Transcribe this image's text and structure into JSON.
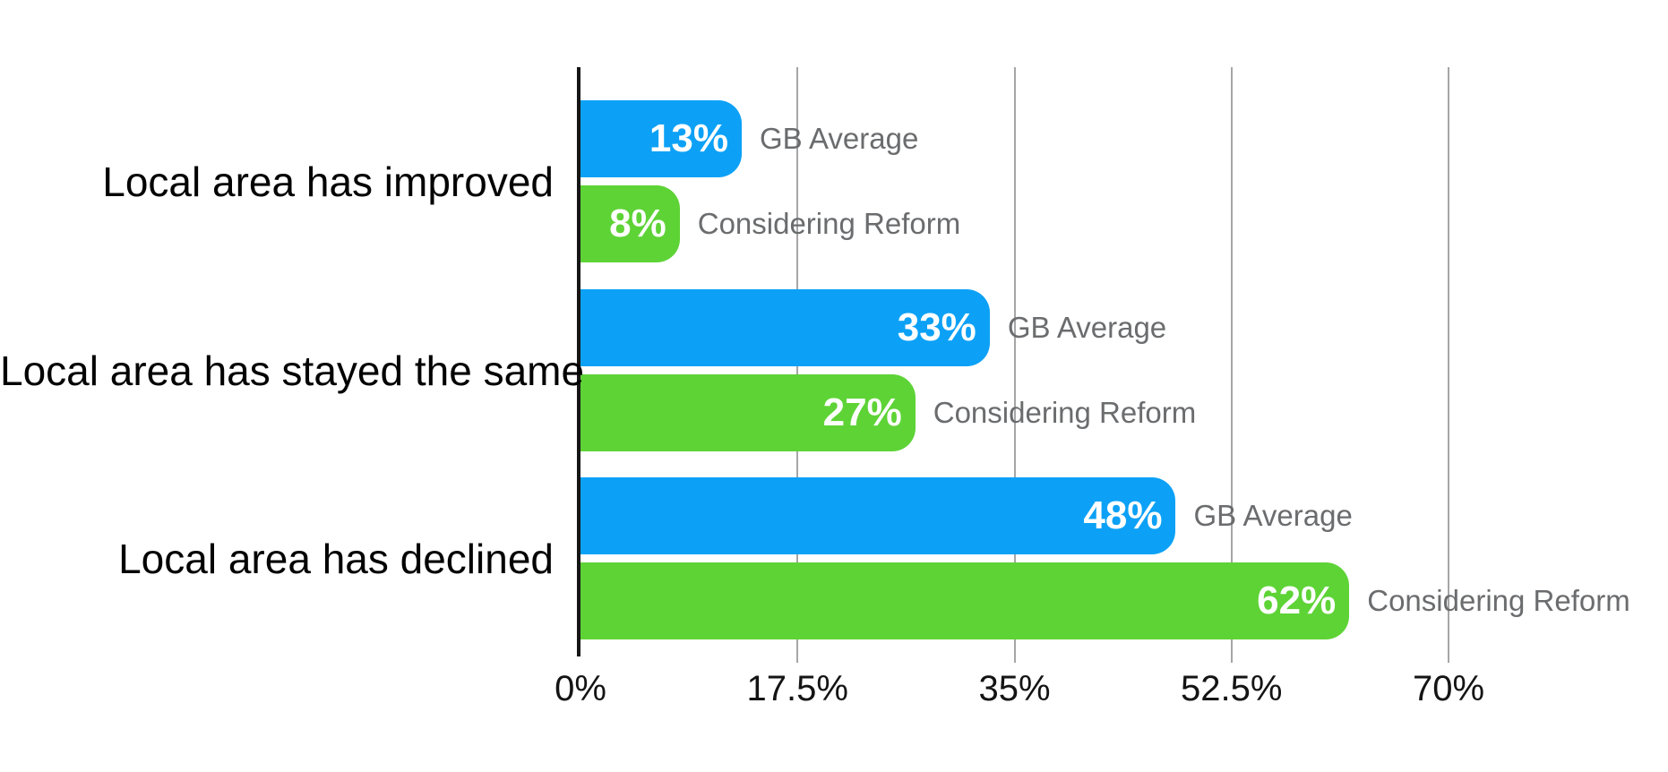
{
  "chart_data": {
    "type": "bar",
    "orientation": "horizontal",
    "title": "",
    "xlabel": "",
    "ylabel": "",
    "categories": [
      "Local area has improved",
      "Local area has stayed the same",
      "Local area has declined"
    ],
    "series": [
      {
        "name": "GB Average",
        "color": "#0CA1F6",
        "values": [
          13,
          33,
          48
        ],
        "labels": [
          "13%",
          "33%",
          "48%"
        ]
      },
      {
        "name": "Considering Reform",
        "color": "#5ED336",
        "values": [
          8,
          27,
          62
        ],
        "labels": [
          "8%",
          "27%",
          "62%"
        ]
      }
    ],
    "x_ticks": [
      "0%",
      "17.5%",
      "35%",
      "52.5%",
      "70%"
    ],
    "x_tick_values": [
      0,
      17.5,
      35,
      52.5,
      70
    ],
    "xlim": [
      0,
      70
    ],
    "grid": true,
    "value_labels_position": "inside-bar-right",
    "series_labels_position": "right-of-bar"
  },
  "colors": {
    "gb_average": "#0CA1F6",
    "considering_reform": "#5ED336",
    "gridline": "#A6A6A6",
    "axis": "#161616",
    "bar_value_text": "#FFFFFF",
    "series_label_text": "#6B6C6E",
    "tick_label_text": "#141414",
    "category_label_text": "#030303",
    "background": "#FFFFFF"
  }
}
